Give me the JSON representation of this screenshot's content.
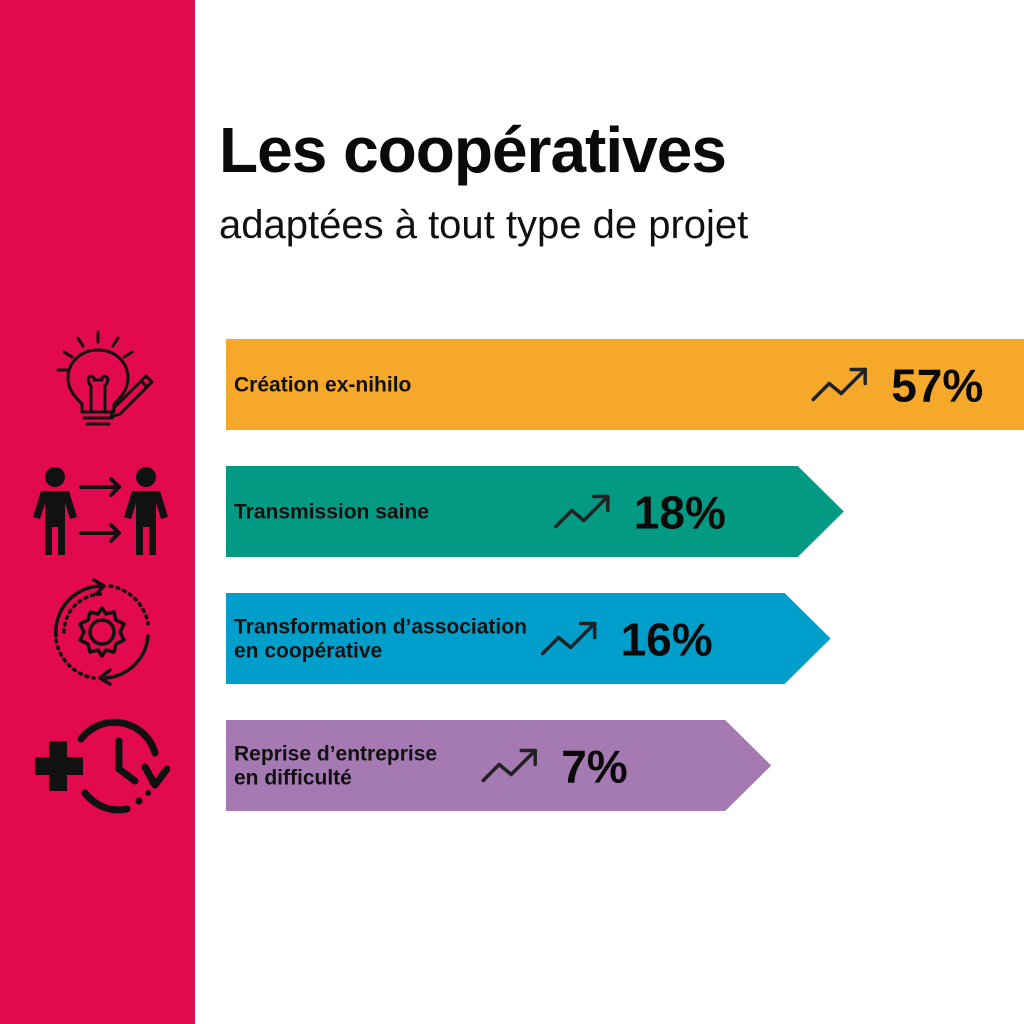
{
  "colors": {
    "sidebar": "#e2094e",
    "text": "#0a0a0a",
    "icons": "#111111"
  },
  "header": {
    "title": "Les coopératives",
    "subtitle": "adaptées à tout type de projet"
  },
  "icons": [
    {
      "name": "lightbulb-pencil-icon"
    },
    {
      "name": "people-exchange-icon"
    },
    {
      "name": "gear-cycle-icon"
    },
    {
      "name": "plus-clock-icon"
    }
  ],
  "chart_data": {
    "type": "bar",
    "orientation": "horizontal",
    "categories": [
      [
        "Création ex-nihilo"
      ],
      [
        "Transmission saine"
      ],
      [
        "Transformation d’association",
        "en coopérative"
      ],
      [
        "Reprise d’entreprise",
        "en difficulté"
      ]
    ],
    "values": [
      57,
      18,
      16,
      7
    ],
    "value_labels": [
      "57%",
      "18%",
      "16%",
      "7%"
    ],
    "colors": [
      "#f5a82a",
      "#029a83",
      "#009fcb",
      "#a57ab2"
    ],
    "trend_icon": "trend-up-arrow-icon"
  }
}
